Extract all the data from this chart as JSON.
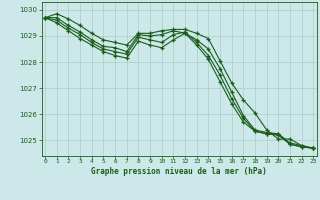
{
  "background_color": "#cce8e8",
  "grid_color": "#aacccc",
  "line_color": "#1a5c1a",
  "title": "Graphe pression niveau de la mer (hPa)",
  "hours": [
    0,
    1,
    2,
    3,
    4,
    5,
    6,
    7,
    8,
    9,
    10,
    11,
    12,
    13,
    14,
    15,
    16,
    17,
    18,
    19,
    20,
    21,
    22,
    23
  ],
  "ylim": [
    1024.4,
    1030.3
  ],
  "yticks": [
    1025,
    1026,
    1027,
    1028,
    1029,
    1030
  ],
  "xlim": [
    -0.3,
    23.3
  ],
  "series": [
    [
      1029.7,
      1029.85,
      1029.65,
      1029.4,
      1029.1,
      1028.85,
      1028.75,
      1028.65,
      1029.1,
      1029.1,
      1029.2,
      1029.25,
      1029.25,
      1029.1,
      1028.9,
      1028.05,
      1027.2,
      1026.55,
      1026.05,
      1025.4,
      1025.05,
      1025.05,
      1024.8,
      1024.7
    ],
    [
      1029.7,
      1029.7,
      1029.4,
      1029.15,
      1028.85,
      1028.6,
      1028.55,
      1028.4,
      1029.05,
      1029.0,
      1029.05,
      1029.2,
      1029.1,
      1028.85,
      1028.5,
      1027.75,
      1026.85,
      1025.95,
      1025.4,
      1025.3,
      1025.25,
      1024.9,
      1024.8,
      1024.7
    ],
    [
      1029.7,
      1029.6,
      1029.3,
      1029.05,
      1028.75,
      1028.5,
      1028.4,
      1028.3,
      1028.95,
      1028.85,
      1028.75,
      1029.05,
      1029.15,
      1028.75,
      1028.25,
      1027.5,
      1026.6,
      1025.85,
      1025.35,
      1025.25,
      1025.25,
      1024.85,
      1024.75,
      1024.7
    ],
    [
      1029.7,
      1029.5,
      1029.2,
      1028.9,
      1028.65,
      1028.4,
      1028.25,
      1028.15,
      1028.8,
      1028.65,
      1028.55,
      1028.85,
      1029.1,
      1028.65,
      1028.1,
      1027.25,
      1026.4,
      1025.7,
      1025.35,
      1025.25,
      1025.2,
      1024.85,
      1024.75,
      1024.7
    ]
  ]
}
